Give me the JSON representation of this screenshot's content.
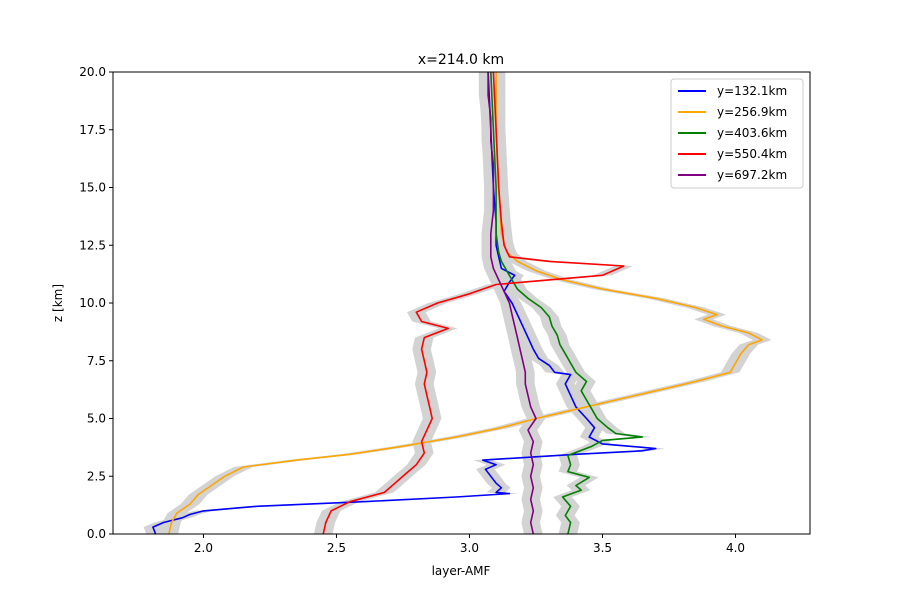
{
  "chart_data": {
    "type": "line",
    "title": "x=214.0 km",
    "xlabel": "layer-AMF",
    "ylabel": "z [km]",
    "xlim": [
      1.66,
      4.28
    ],
    "ylim": [
      0,
      20
    ],
    "xticks": [
      "2.0",
      "2.5",
      "3.0",
      "3.5",
      "4.0"
    ],
    "yticks": [
      "0.0",
      "2.5",
      "5.0",
      "7.5",
      "10.0",
      "12.5",
      "15.0",
      "17.5",
      "20.0"
    ],
    "grid": false,
    "legend_position": "top-right",
    "band_color": "#d3d3d3",
    "band_halfwidth": 0.035,
    "series": [
      {
        "name": "y=132.1km",
        "color": "#0000ff",
        "z": [
          0.0,
          0.3,
          0.5,
          0.7,
          0.85,
          1.0,
          1.2,
          1.4,
          1.6,
          1.75,
          1.8,
          2.0,
          2.2,
          2.5,
          2.8,
          3.0,
          3.2,
          3.45,
          3.6,
          3.7,
          3.9,
          4.2,
          4.6,
          5.0,
          5.5,
          6.0,
          6.5,
          6.9,
          7.0,
          7.3,
          7.6,
          8.0,
          8.5,
          9.0,
          9.5,
          10.0,
          10.5,
          10.9,
          11.2,
          11.5,
          12.0,
          12.5,
          13.5,
          15.0,
          17.5,
          20.0
        ],
        "amf": [
          1.82,
          1.81,
          1.85,
          1.92,
          1.95,
          2.0,
          2.2,
          2.6,
          2.95,
          3.15,
          3.1,
          3.12,
          3.1,
          3.08,
          3.06,
          3.1,
          3.05,
          3.4,
          3.65,
          3.7,
          3.5,
          3.45,
          3.47,
          3.44,
          3.4,
          3.38,
          3.36,
          3.38,
          3.32,
          3.3,
          3.26,
          3.24,
          3.22,
          3.2,
          3.18,
          3.16,
          3.13,
          3.15,
          3.17,
          3.12,
          3.11,
          3.1,
          3.1,
          3.09,
          3.08,
          3.07
        ]
      },
      {
        "name": "y=256.9km",
        "color": "#ffa500",
        "z": [
          0.0,
          0.5,
          0.9,
          1.3,
          1.7,
          2.1,
          2.5,
          2.9,
          3.2,
          3.45,
          3.8,
          4.2,
          4.6,
          5.0,
          5.4,
          5.8,
          6.2,
          6.6,
          7.0,
          7.4,
          7.8,
          8.2,
          8.4,
          8.7,
          9.0,
          9.3,
          9.5,
          9.8,
          10.2,
          10.6,
          11.0,
          11.4,
          11.8,
          12.2,
          13.0,
          15.0,
          17.5,
          20.0
        ],
        "amf": [
          1.87,
          1.88,
          1.9,
          1.95,
          1.98,
          2.03,
          2.08,
          2.15,
          2.35,
          2.55,
          2.75,
          2.95,
          3.12,
          3.25,
          3.4,
          3.55,
          3.7,
          3.85,
          3.98,
          4.0,
          4.02,
          4.05,
          4.1,
          4.05,
          3.95,
          3.88,
          3.93,
          3.85,
          3.7,
          3.5,
          3.35,
          3.25,
          3.18,
          3.14,
          3.12,
          3.11,
          3.1,
          3.1
        ]
      },
      {
        "name": "y=403.6km",
        "color": "#008000",
        "z": [
          0.0,
          0.5,
          0.8,
          1.2,
          1.6,
          1.9,
          2.1,
          2.45,
          2.7,
          3.0,
          3.4,
          3.8,
          4.05,
          4.2,
          4.35,
          4.6,
          5.0,
          5.4,
          5.8,
          6.2,
          6.6,
          7.0,
          7.4,
          7.8,
          8.2,
          8.6,
          9.0,
          9.4,
          9.8,
          10.2,
          10.6,
          11.0,
          11.4,
          11.8,
          12.2,
          13.0,
          15.0,
          17.5,
          20.0
        ],
        "amf": [
          3.37,
          3.38,
          3.36,
          3.38,
          3.35,
          3.42,
          3.4,
          3.45,
          3.37,
          3.38,
          3.37,
          3.46,
          3.5,
          3.65,
          3.55,
          3.52,
          3.48,
          3.46,
          3.44,
          3.42,
          3.44,
          3.4,
          3.38,
          3.36,
          3.34,
          3.33,
          3.31,
          3.3,
          3.27,
          3.22,
          3.18,
          3.16,
          3.14,
          3.12,
          3.11,
          3.1,
          3.1,
          3.09,
          3.08
        ]
      },
      {
        "name": "y=550.4km",
        "color": "#ff0000",
        "z": [
          0.0,
          0.5,
          1.0,
          1.4,
          1.8,
          2.2,
          2.6,
          3.0,
          3.5,
          4.0,
          4.5,
          5.0,
          5.5,
          6.0,
          6.5,
          7.0,
          7.5,
          8.0,
          8.5,
          8.9,
          9.2,
          9.6,
          10.0,
          10.4,
          10.8,
          11.2,
          11.6,
          11.8,
          12.0,
          12.5,
          13.5,
          15.0,
          17.5,
          20.0
        ],
        "amf": [
          2.45,
          2.46,
          2.48,
          2.55,
          2.68,
          2.72,
          2.76,
          2.8,
          2.83,
          2.82,
          2.84,
          2.86,
          2.85,
          2.84,
          2.83,
          2.84,
          2.83,
          2.82,
          2.83,
          2.92,
          2.82,
          2.8,
          2.88,
          3.0,
          3.1,
          3.5,
          3.58,
          3.3,
          3.15,
          3.13,
          3.12,
          3.11,
          3.1,
          3.09
        ]
      },
      {
        "name": "y=697.2km",
        "color": "#800080",
        "z": [
          0.0,
          0.5,
          1.0,
          1.5,
          2.0,
          2.5,
          3.0,
          3.5,
          4.0,
          4.5,
          5.0,
          5.5,
          6.0,
          6.5,
          7.0,
          7.5,
          8.0,
          8.5,
          9.0,
          9.5,
          10.0,
          10.5,
          11.0,
          11.5,
          12.0,
          12.5,
          13.0,
          14.0,
          15.0,
          16.0,
          17.0,
          18.0,
          19.0,
          20.0
        ],
        "amf": [
          3.24,
          3.23,
          3.24,
          3.23,
          3.24,
          3.23,
          3.24,
          3.23,
          3.24,
          3.22,
          3.25,
          3.23,
          3.22,
          3.21,
          3.21,
          3.2,
          3.19,
          3.18,
          3.17,
          3.16,
          3.15,
          3.13,
          3.11,
          3.09,
          3.08,
          3.08,
          3.08,
          3.09,
          3.09,
          3.09,
          3.08,
          3.08,
          3.07,
          3.07
        ]
      }
    ]
  }
}
